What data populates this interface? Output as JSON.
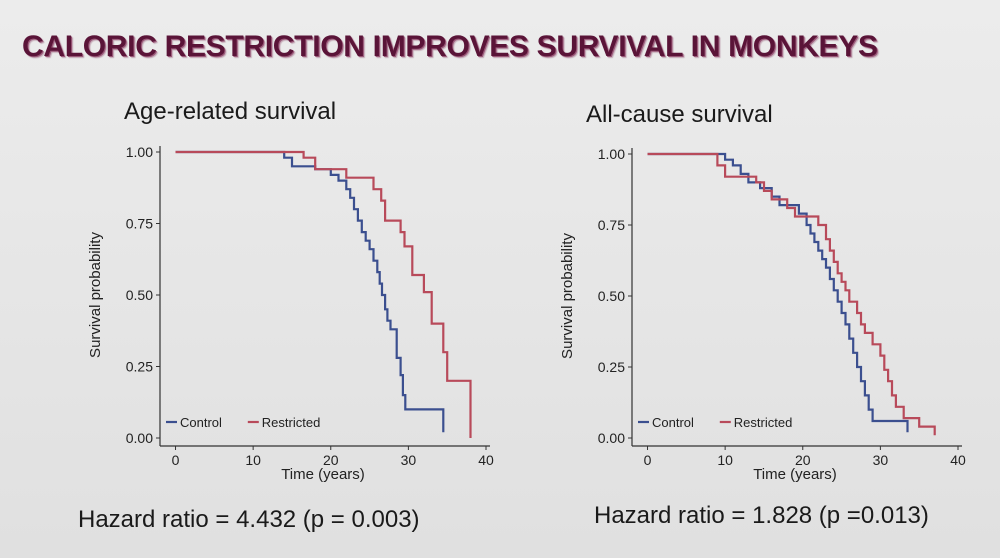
{
  "slide": {
    "title": "CALORIC RESTRICTION IMPROVES SURVIVAL IN MONKEYS"
  },
  "colors": {
    "control": "#3b4f8f",
    "restricted": "#b84a5a",
    "axis": "#333333",
    "title": "#5a1438"
  },
  "chart_data": [
    {
      "type": "line",
      "step": true,
      "title": "Age-related survival",
      "xlabel": "Time (years)",
      "ylabel": "Survival probability",
      "xlim": [
        -2,
        40
      ],
      "ylim": [
        0,
        1
      ],
      "xticks": [
        0,
        10,
        20,
        30,
        40
      ],
      "xtick_labels": [
        "0",
        "10",
        "20",
        "30",
        "40"
      ],
      "yticks": [
        0,
        0.25,
        0.5,
        0.75,
        1
      ],
      "ytick_labels": [
        "0.00",
        "0.25",
        "0.50",
        "0.75",
        "1.00"
      ],
      "legend_position": "bottom-left",
      "footer": "Hazard ratio = 4.432 (p = 0.003)",
      "series": [
        {
          "name": "Control",
          "color": "#3b4f8f",
          "points": [
            [
              0,
              1.0
            ],
            [
              14,
              1.0
            ],
            [
              14,
              0.98
            ],
            [
              15,
              0.98
            ],
            [
              15,
              0.95
            ],
            [
              18,
              0.95
            ],
            [
              18,
              0.94
            ],
            [
              20,
              0.94
            ],
            [
              20,
              0.92
            ],
            [
              21,
              0.92
            ],
            [
              21,
              0.9
            ],
            [
              22,
              0.9
            ],
            [
              22,
              0.87
            ],
            [
              22.5,
              0.87
            ],
            [
              22.5,
              0.84
            ],
            [
              23,
              0.84
            ],
            [
              23,
              0.8
            ],
            [
              23.5,
              0.8
            ],
            [
              23.5,
              0.76
            ],
            [
              24,
              0.76
            ],
            [
              24,
              0.72
            ],
            [
              24.5,
              0.72
            ],
            [
              24.5,
              0.69
            ],
            [
              25,
              0.69
            ],
            [
              25,
              0.66
            ],
            [
              25.5,
              0.66
            ],
            [
              25.5,
              0.62
            ],
            [
              26,
              0.62
            ],
            [
              26,
              0.58
            ],
            [
              26.3,
              0.58
            ],
            [
              26.3,
              0.54
            ],
            [
              26.6,
              0.54
            ],
            [
              26.6,
              0.5
            ],
            [
              27,
              0.5
            ],
            [
              27,
              0.45
            ],
            [
              27.3,
              0.45
            ],
            [
              27.3,
              0.41
            ],
            [
              27.7,
              0.41
            ],
            [
              27.7,
              0.38
            ],
            [
              28.5,
              0.38
            ],
            [
              28.5,
              0.28
            ],
            [
              29,
              0.28
            ],
            [
              29,
              0.22
            ],
            [
              29.3,
              0.22
            ],
            [
              29.3,
              0.15
            ],
            [
              29.6,
              0.15
            ],
            [
              29.6,
              0.1
            ],
            [
              34.5,
              0.1
            ],
            [
              34.5,
              0.02
            ]
          ]
        },
        {
          "name": "Restricted",
          "color": "#b84a5a",
          "points": [
            [
              0,
              1.0
            ],
            [
              16.5,
              1.0
            ],
            [
              16.5,
              0.98
            ],
            [
              18,
              0.98
            ],
            [
              18,
              0.94
            ],
            [
              22,
              0.94
            ],
            [
              22,
              0.91
            ],
            [
              25.5,
              0.91
            ],
            [
              25.5,
              0.87
            ],
            [
              26.5,
              0.87
            ],
            [
              26.5,
              0.83
            ],
            [
              27,
              0.83
            ],
            [
              27,
              0.76
            ],
            [
              29,
              0.76
            ],
            [
              29,
              0.72
            ],
            [
              29.5,
              0.72
            ],
            [
              29.5,
              0.67
            ],
            [
              30.5,
              0.67
            ],
            [
              30.5,
              0.57
            ],
            [
              32,
              0.57
            ],
            [
              32,
              0.51
            ],
            [
              33,
              0.51
            ],
            [
              33,
              0.4
            ],
            [
              34.5,
              0.4
            ],
            [
              34.5,
              0.3
            ],
            [
              35,
              0.3
            ],
            [
              35,
              0.2
            ],
            [
              38,
              0.2
            ],
            [
              38,
              0.0
            ]
          ]
        }
      ]
    },
    {
      "type": "line",
      "step": true,
      "title": "All-cause survival",
      "xlabel": "Time (years)",
      "ylabel": "Survival probability",
      "xlim": [
        -2,
        40
      ],
      "ylim": [
        0,
        1
      ],
      "xticks": [
        0,
        10,
        20,
        30,
        40
      ],
      "xtick_labels": [
        "0",
        "10",
        "20",
        "30",
        "40"
      ],
      "yticks": [
        0,
        0.25,
        0.5,
        0.75,
        1
      ],
      "ytick_labels": [
        "0.00",
        "0.25",
        "0.50",
        "0.75",
        "1.00"
      ],
      "legend_position": "bottom-left",
      "footer": "Hazard ratio = 1.828 (p =0.013)",
      "series": [
        {
          "name": "Control",
          "color": "#3b4f8f",
          "points": [
            [
              0,
              1.0
            ],
            [
              10,
              1.0
            ],
            [
              10,
              0.98
            ],
            [
              11,
              0.98
            ],
            [
              11,
              0.96
            ],
            [
              12,
              0.96
            ],
            [
              12,
              0.93
            ],
            [
              13,
              0.93
            ],
            [
              13,
              0.9
            ],
            [
              14.5,
              0.9
            ],
            [
              14.5,
              0.88
            ],
            [
              16,
              0.88
            ],
            [
              16,
              0.85
            ],
            [
              17,
              0.85
            ],
            [
              17,
              0.82
            ],
            [
              19.5,
              0.82
            ],
            [
              19.5,
              0.79
            ],
            [
              20.5,
              0.79
            ],
            [
              20.5,
              0.75
            ],
            [
              21,
              0.75
            ],
            [
              21,
              0.72
            ],
            [
              21.5,
              0.72
            ],
            [
              21.5,
              0.69
            ],
            [
              22,
              0.69
            ],
            [
              22,
              0.66
            ],
            [
              22.5,
              0.66
            ],
            [
              22.5,
              0.63
            ],
            [
              23,
              0.63
            ],
            [
              23,
              0.6
            ],
            [
              23.5,
              0.6
            ],
            [
              23.5,
              0.56
            ],
            [
              24,
              0.56
            ],
            [
              24,
              0.52
            ],
            [
              24.5,
              0.52
            ],
            [
              24.5,
              0.48
            ],
            [
              25,
              0.48
            ],
            [
              25,
              0.44
            ],
            [
              25.5,
              0.44
            ],
            [
              25.5,
              0.4
            ],
            [
              26,
              0.4
            ],
            [
              26,
              0.35
            ],
            [
              26.5,
              0.35
            ],
            [
              26.5,
              0.3
            ],
            [
              27,
              0.3
            ],
            [
              27,
              0.25
            ],
            [
              27.5,
              0.25
            ],
            [
              27.5,
              0.2
            ],
            [
              28,
              0.2
            ],
            [
              28,
              0.15
            ],
            [
              28.5,
              0.15
            ],
            [
              28.5,
              0.1
            ],
            [
              29,
              0.1
            ],
            [
              29,
              0.06
            ],
            [
              33.5,
              0.06
            ],
            [
              33.5,
              0.02
            ]
          ]
        },
        {
          "name": "Restricted",
          "color": "#b84a5a",
          "points": [
            [
              0,
              1.0
            ],
            [
              9,
              1.0
            ],
            [
              9,
              0.96
            ],
            [
              10,
              0.96
            ],
            [
              10,
              0.92
            ],
            [
              14,
              0.92
            ],
            [
              14,
              0.9
            ],
            [
              15,
              0.9
            ],
            [
              15,
              0.87
            ],
            [
              16,
              0.87
            ],
            [
              16,
              0.84
            ],
            [
              18,
              0.84
            ],
            [
              18,
              0.81
            ],
            [
              19,
              0.81
            ],
            [
              19,
              0.78
            ],
            [
              22,
              0.78
            ],
            [
              22,
              0.75
            ],
            [
              23,
              0.75
            ],
            [
              23,
              0.7
            ],
            [
              23.5,
              0.7
            ],
            [
              23.5,
              0.66
            ],
            [
              24,
              0.66
            ],
            [
              24,
              0.62
            ],
            [
              24.5,
              0.62
            ],
            [
              24.5,
              0.58
            ],
            [
              25,
              0.58
            ],
            [
              25,
              0.55
            ],
            [
              25.5,
              0.55
            ],
            [
              25.5,
              0.52
            ],
            [
              26,
              0.52
            ],
            [
              26,
              0.48
            ],
            [
              27,
              0.48
            ],
            [
              27,
              0.44
            ],
            [
              27.5,
              0.44
            ],
            [
              27.5,
              0.4
            ],
            [
              28,
              0.4
            ],
            [
              28,
              0.37
            ],
            [
              29,
              0.37
            ],
            [
              29,
              0.33
            ],
            [
              30,
              0.33
            ],
            [
              30,
              0.29
            ],
            [
              30.5,
              0.29
            ],
            [
              30.5,
              0.24
            ],
            [
              31,
              0.24
            ],
            [
              31,
              0.2
            ],
            [
              31.5,
              0.2
            ],
            [
              31.5,
              0.15
            ],
            [
              32,
              0.15
            ],
            [
              32,
              0.11
            ],
            [
              33,
              0.11
            ],
            [
              33,
              0.07
            ],
            [
              35,
              0.07
            ],
            [
              35,
              0.04
            ],
            [
              37,
              0.04
            ],
            [
              37,
              0.01
            ]
          ]
        }
      ]
    }
  ]
}
